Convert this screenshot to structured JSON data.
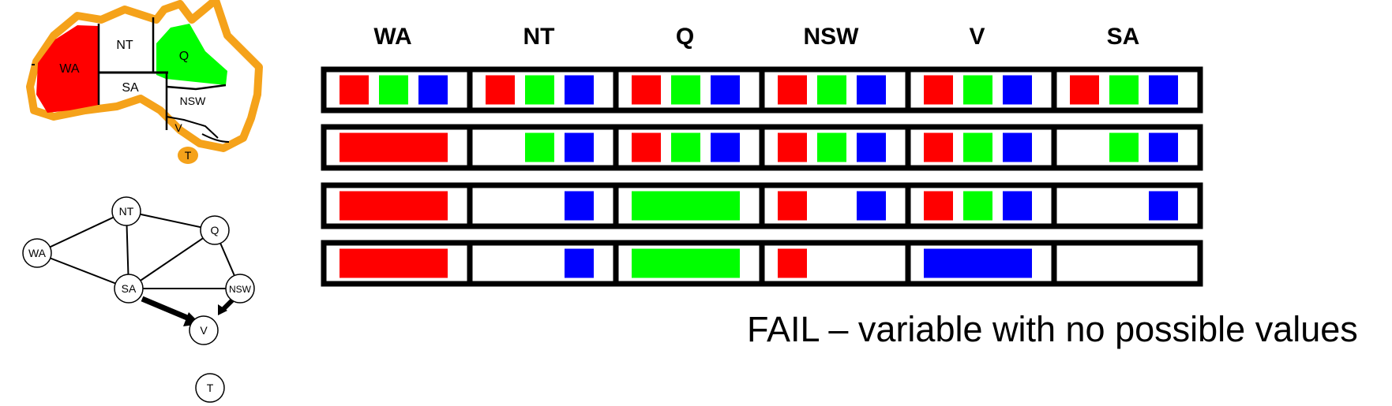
{
  "colors": {
    "red": "#ff0000",
    "green": "#00ff00",
    "blue": "#0000ff",
    "border": "#000000",
    "map_outline": "#f5a21a"
  },
  "variables": [
    "WA",
    "NT",
    "Q",
    "NSW",
    "V",
    "SA"
  ],
  "map": {
    "labels": {
      "wa": "WA",
      "nt": "NT",
      "q": "Q",
      "sa": "SA",
      "nsw": "NSW",
      "v": "V",
      "t": "T"
    },
    "assigned": {
      "WA": "red",
      "Q": "green"
    }
  },
  "graph": {
    "nodes": [
      {
        "id": "NT",
        "label": "NT"
      },
      {
        "id": "Q",
        "label": "Q"
      },
      {
        "id": "WA",
        "label": "WA"
      },
      {
        "id": "SA",
        "label": "SA"
      },
      {
        "id": "NSW",
        "label": "NSW"
      },
      {
        "id": "V",
        "label": "V"
      },
      {
        "id": "T",
        "label": "T"
      }
    ],
    "edges": [
      [
        "WA",
        "NT"
      ],
      [
        "WA",
        "SA"
      ],
      [
        "NT",
        "SA"
      ],
      [
        "NT",
        "Q"
      ],
      [
        "SA",
        "Q"
      ],
      [
        "SA",
        "NSW"
      ],
      [
        "Q",
        "NSW"
      ]
    ],
    "arcs": [
      [
        "SA",
        "V"
      ],
      [
        "NSW",
        "V"
      ]
    ]
  },
  "domain_rows": [
    {
      "WA": [
        "red",
        "green",
        "blue"
      ],
      "NT": [
        "red",
        "green",
        "blue"
      ],
      "Q": [
        "red",
        "green",
        "blue"
      ],
      "NSW": [
        "red",
        "green",
        "blue"
      ],
      "V": [
        "red",
        "green",
        "blue"
      ],
      "SA": [
        "red",
        "green",
        "blue"
      ]
    },
    {
      "WA": [
        "red"
      ],
      "NT": [
        "green",
        "blue"
      ],
      "Q": [
        "red",
        "green",
        "blue"
      ],
      "NSW": [
        "red",
        "green",
        "blue"
      ],
      "V": [
        "red",
        "green",
        "blue"
      ],
      "SA": [
        "green",
        "blue"
      ]
    },
    {
      "WA": [
        "red"
      ],
      "NT": [
        "blue"
      ],
      "Q": [
        "green"
      ],
      "NSW": [
        "red",
        "blue"
      ],
      "V": [
        "red",
        "green",
        "blue"
      ],
      "SA": [
        "blue"
      ]
    },
    {
      "WA": [
        "red"
      ],
      "NT": [
        "blue"
      ],
      "Q": [
        "green"
      ],
      "NSW": [
        "red"
      ],
      "V": [
        "blue"
      ],
      "SA": []
    }
  ],
  "verdict": "FAIL – variable with no possible values"
}
